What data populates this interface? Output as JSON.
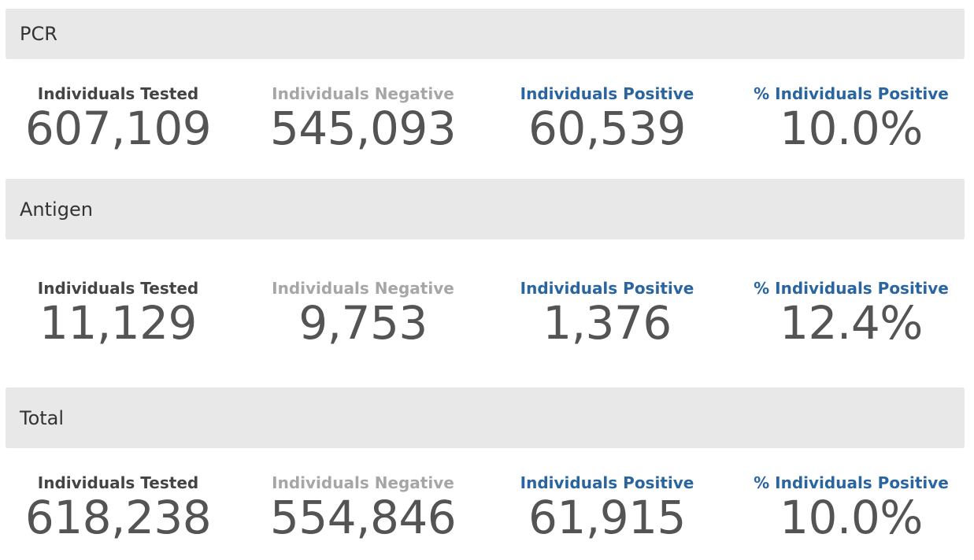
{
  "colors": {
    "header_bg": "#e8e8e8",
    "tested_label": "#444444",
    "negative_label": "#a6a6a6",
    "positive_label": "#2a65a0",
    "value_text": "#545454"
  },
  "sections": [
    {
      "title": "PCR",
      "stats": {
        "tested_label": "Individuals Tested",
        "tested_value": "607,109",
        "negative_label": "Individuals Negative",
        "negative_value": "545,093",
        "positive_label": "Individuals Positive",
        "positive_value": "60,539",
        "pct_label": "% Individuals Positive",
        "pct_value": "10.0%"
      }
    },
    {
      "title": "Antigen",
      "stats": {
        "tested_label": "Individuals Tested",
        "tested_value": "11,129",
        "negative_label": "Individuals Negative",
        "negative_value": "9,753",
        "positive_label": "Individuals Positive",
        "positive_value": "1,376",
        "pct_label": "% Individuals Positive",
        "pct_value": "12.4%"
      }
    },
    {
      "title": "Total",
      "stats": {
        "tested_label": "Individuals Tested",
        "tested_value": "618,238",
        "negative_label": "Individuals Negative",
        "negative_value": "554,846",
        "positive_label": "Individuals Positive",
        "positive_value": "61,915",
        "pct_label": "% Individuals Positive",
        "pct_value": "10.0%"
      }
    }
  ]
}
